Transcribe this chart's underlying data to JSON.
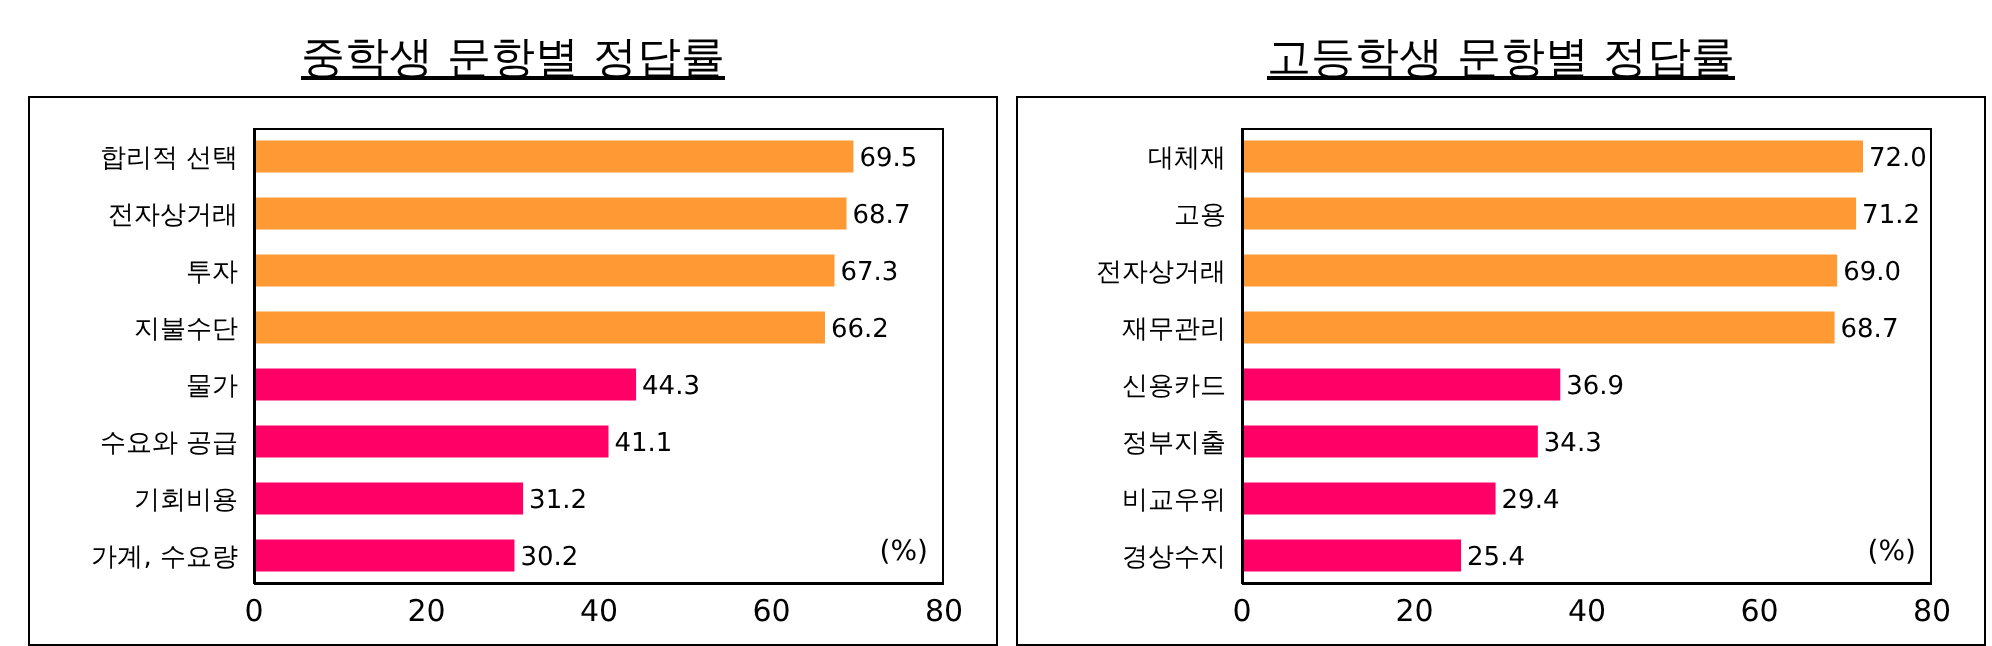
{
  "chart_data": [
    {
      "type": "bar",
      "orientation": "horizontal",
      "title": "중학생 문항별 정답률",
      "categories": [
        "합리적 선택",
        "전자상거래",
        "투자",
        "지불수단",
        "물가",
        "수요와 공급",
        "기회비용",
        "가계, 수요량"
      ],
      "values": [
        69.5,
        68.7,
        67.3,
        66.2,
        44.3,
        41.1,
        31.2,
        30.2
      ],
      "colors": [
        "#ff9933",
        "#ff9933",
        "#ff9933",
        "#ff9933",
        "#ff0066",
        "#ff0066",
        "#ff0066",
        "#ff0066"
      ],
      "xlim": [
        0,
        80
      ],
      "xticks": [
        0,
        20,
        40,
        60,
        80
      ],
      "data_labels": true,
      "annotations": [
        "(%)"
      ]
    },
    {
      "type": "bar",
      "orientation": "horizontal",
      "title": "고등학생 문항별 정답률",
      "categories": [
        "대체재",
        "고용",
        "전자상거래",
        "재무관리",
        "신용카드",
        "정부지출",
        "비교우위",
        "경상수지"
      ],
      "values": [
        72.0,
        71.2,
        69.0,
        68.7,
        36.9,
        34.3,
        29.4,
        25.4
      ],
      "value_labels": [
        "72.0",
        "71.2",
        "69.0",
        "68.7",
        "36.9",
        "34.3",
        "29.4",
        "25.4"
      ],
      "colors": [
        "#ff9933",
        "#ff9933",
        "#ff9933",
        "#ff9933",
        "#ff0066",
        "#ff0066",
        "#ff0066",
        "#ff0066"
      ],
      "xlim": [
        0,
        80
      ],
      "xticks": [
        0,
        20,
        40,
        60,
        80
      ],
      "annotations": [
        "(%)"
      ]
    }
  ]
}
